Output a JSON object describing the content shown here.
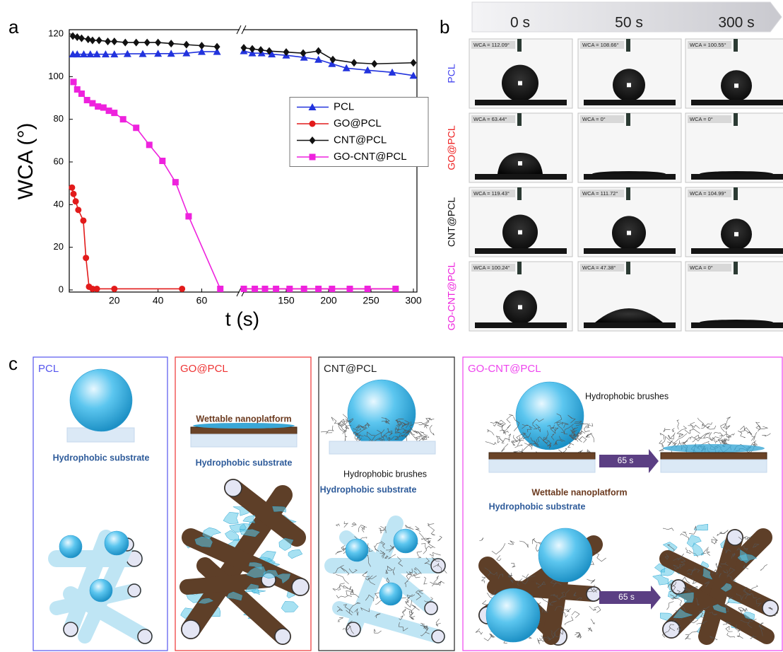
{
  "chart_data": {
    "type": "line",
    "label": "a",
    "x_label": "t (s)",
    "y_label": "WCA (°)",
    "xlim": [
      0,
      300
    ],
    "x_break": [
      77,
      100
    ],
    "xticks": [
      20,
      40,
      60,
      150,
      200,
      250,
      300
    ],
    "ylim": [
      -1,
      122
    ],
    "yticks": [
      0,
      20,
      40,
      60,
      80,
      100,
      120
    ],
    "legend": "center right",
    "series": [
      {
        "name": "PCL",
        "color": "#2233dd",
        "marker": "triangle",
        "x": [
          1,
          3,
          6,
          9,
          12,
          16,
          20,
          26,
          33,
          40,
          46,
          53,
          60,
          67,
          100,
          110,
          121,
          133,
          150,
          171,
          188,
          204,
          221,
          246,
          275,
          300
        ],
        "values": [
          110.5,
          110.5,
          110.5,
          110.5,
          110.5,
          110.5,
          110.5,
          110.7,
          110.7,
          110.8,
          110.8,
          111,
          111.7,
          111.7,
          112,
          111,
          111,
          110.5,
          110,
          109,
          108,
          106,
          104,
          103,
          102,
          100.5
        ]
      },
      {
        "name": "GO@PCL",
        "color": "#e21b1b",
        "marker": "circle",
        "x": [
          0.6,
          1.3,
          2.3,
          3.5,
          5.8,
          7,
          8.4,
          10,
          12,
          20,
          51,
          100,
          113,
          125,
          138,
          154,
          171,
          188,
          204,
          225,
          246,
          279
        ],
        "values": [
          48,
          45,
          41.5,
          37.5,
          32.5,
          15,
          1.5,
          0.5,
          0.5,
          0.5,
          0.5,
          0.5,
          0.5,
          0.5,
          0.5,
          0.5,
          0.5,
          0.5,
          0.5,
          0.5,
          0.5,
          0.5
        ]
      },
      {
        "name": "CNT@PCL",
        "color": "#111111",
        "marker": "diamond",
        "x": [
          1,
          3,
          5,
          8,
          10,
          13,
          17,
          20,
          25,
          30,
          35,
          40,
          46,
          53,
          60,
          67,
          100,
          110,
          120,
          130,
          150,
          170,
          188,
          205,
          230,
          254,
          300
        ],
        "values": [
          119,
          118.5,
          118,
          117.5,
          117,
          117,
          116.5,
          116.5,
          116,
          116,
          116,
          116,
          115.5,
          115,
          114.5,
          114,
          113.5,
          113,
          112.5,
          112,
          111.5,
          111,
          112,
          108,
          106.5,
          106,
          106.5
        ]
      },
      {
        "name": "GO-CNT@PCL",
        "color": "#ee22dd",
        "marker": "square",
        "x": [
          1.3,
          3,
          5,
          7.5,
          10,
          12.5,
          15,
          17.5,
          20,
          24,
          30,
          36,
          42,
          48,
          54,
          68.5,
          100,
          113,
          125,
          138,
          154,
          171,
          188,
          204,
          225,
          246,
          279
        ],
        "values": [
          97.5,
          94,
          92,
          89,
          87.5,
          86,
          85.5,
          84,
          83,
          80,
          76,
          68,
          60.5,
          50.5,
          34.5,
          0.5,
          0.5,
          0.5,
          0.5,
          0.5,
          0.5,
          0.5,
          0.5,
          0.5,
          0.5,
          0.5,
          0.5
        ]
      }
    ]
  },
  "panel_b": {
    "label": "b",
    "times": [
      "0 s",
      "50 s",
      "300 s"
    ],
    "rows": [
      {
        "name": "PCL",
        "color": "#4444ee",
        "wca": [
          "WCA = 112.09°",
          "WCA = 108.66°",
          "WCA = 100.55°"
        ]
      },
      {
        "name": "GO@PCL",
        "color": "#ee2222",
        "wca": [
          "WCA = 63.44°",
          "WCA = 0°",
          "WCA = 0°"
        ]
      },
      {
        "name": "CNT@PCL",
        "color": "#111111",
        "wca": [
          "WCA = 119.43°",
          "WCA = 111.72°",
          "WCA = 104.99°"
        ]
      },
      {
        "name": "GO-CNT@PCL",
        "color": "#ee22dd",
        "wca": [
          "WCA = 100.24°",
          "WCA = 47.38°",
          "WCA = 0°"
        ]
      }
    ]
  },
  "panel_c": {
    "label": "c",
    "boxes": [
      {
        "title": "PCL",
        "color": "#5555ee",
        "labels": [
          "Hydrophobic substrate"
        ]
      },
      {
        "title": "GO@PCL",
        "color": "#ee3333",
        "labels": [
          "Wettable nanoplatform",
          "Hydrophobic substrate"
        ]
      },
      {
        "title": "CNT@PCL",
        "color": "#222222",
        "labels": [
          "Hydrophobic brushes",
          "Hydrophobic substrate"
        ]
      },
      {
        "title": "GO-CNT@PCL",
        "color": "#ee44ee",
        "labels": [
          "Hydrophobic brushes",
          "Wettable nanoplatform",
          "Hydrophobic substrate"
        ],
        "arrow_labels": [
          "65 s",
          "65 s"
        ]
      }
    ]
  }
}
